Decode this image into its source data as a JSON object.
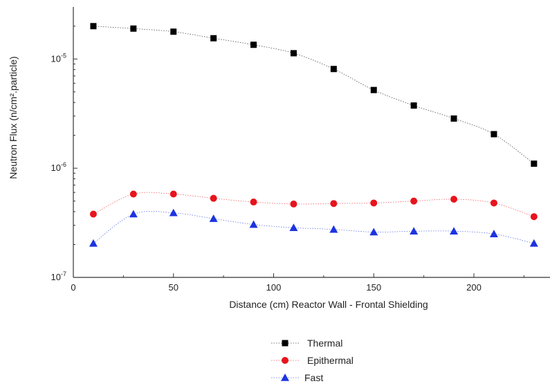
{
  "chart_data": {
    "type": "scatter",
    "title": "",
    "xlabel": "Distance (cm) Reactor Wall - Frontal Shielding",
    "ylabel": "Neutron Flux (n/cm².particle)",
    "xlim": [
      0,
      238
    ],
    "ylim": [
      1e-07,
      3e-05
    ],
    "yscale": "log",
    "xticks": [
      0,
      50,
      100,
      150,
      200
    ],
    "yticks": [
      {
        "value": 1e-07,
        "base": "10",
        "exp": "-7"
      },
      {
        "value": 1e-06,
        "base": "10",
        "exp": "-6"
      },
      {
        "value": 1e-05,
        "base": "10",
        "exp": "-5"
      }
    ],
    "x": [
      10,
      30,
      50,
      70,
      90,
      110,
      130,
      150,
      170,
      190,
      210,
      230
    ],
    "series": [
      {
        "name": "Thermal",
        "marker": "square",
        "color": "#000000",
        "values": [
          2e-05,
          1.9e-05,
          1.78e-05,
          1.55e-05,
          1.35e-05,
          1.13e-05,
          8.1e-06,
          5.2e-06,
          3.75e-06,
          2.85e-06,
          2.05e-06,
          1.1e-06
        ]
      },
      {
        "name": "Epithermal",
        "marker": "circle",
        "color": "#e8141c",
        "values": [
          3.8e-07,
          5.8e-07,
          5.8e-07,
          5.3e-07,
          4.9e-07,
          4.7e-07,
          4.75e-07,
          4.8e-07,
          5e-07,
          5.2e-07,
          4.8e-07,
          3.6e-07
        ]
      },
      {
        "name": "Fast",
        "marker": "triangle",
        "color": "#1c34e0",
        "values": [
          2.05e-07,
          3.8e-07,
          3.9e-07,
          3.45e-07,
          3.05e-07,
          2.85e-07,
          2.75e-07,
          2.6e-07,
          2.65e-07,
          2.65e-07,
          2.5e-07,
          2.05e-07
        ]
      }
    ],
    "grid": false,
    "legend_position": "bottom-center"
  }
}
